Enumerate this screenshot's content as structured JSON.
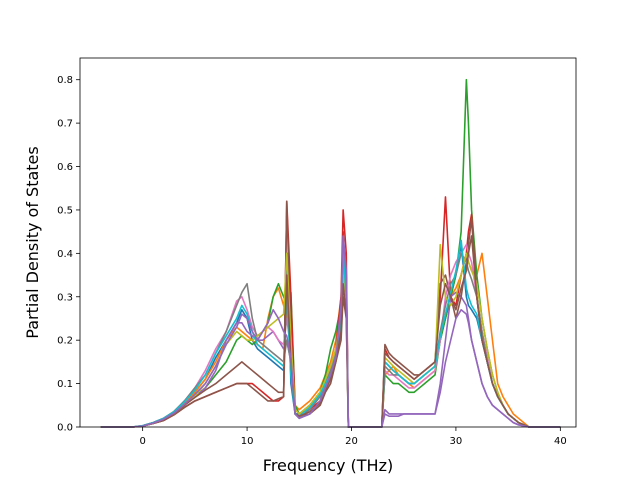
{
  "chart_data": {
    "type": "line",
    "xlabel": "Frequency (THz)",
    "ylabel": "Partial Density of States",
    "xlim": [
      -6,
      41.5
    ],
    "ylim": [
      0,
      0.85
    ],
    "xticks": [
      0,
      10,
      20,
      30,
      40
    ],
    "yticks": [
      0.0,
      0.1,
      0.2,
      0.3,
      0.4,
      0.5,
      0.6,
      0.7,
      0.8
    ],
    "grid": false,
    "x": [
      -4,
      -1,
      0,
      1,
      2,
      3,
      4,
      5,
      6,
      7,
      8,
      9,
      9.5,
      10,
      10.5,
      11,
      11.5,
      12,
      12.5,
      13,
      13.5,
      13.8,
      14.2,
      14.6,
      15,
      16,
      17,
      17.5,
      18,
      18.5,
      19,
      19.2,
      19.5,
      19.7,
      20,
      21,
      22,
      22.9,
      23.2,
      23.6,
      24,
      24.5,
      25,
      25.5,
      26,
      26.5,
      27,
      27.5,
      28,
      28.5,
      29,
      29.5,
      30,
      30.5,
      31,
      31.2,
      31.5,
      32,
      32.5,
      33,
      33.5,
      34,
      34.5,
      35,
      35.5,
      36,
      37,
      40
    ],
    "series": [
      {
        "color": "#1f77b4",
        "values": [
          0,
          0,
          0.003,
          0.01,
          0.02,
          0.035,
          0.06,
          0.08,
          0.11,
          0.16,
          0.2,
          0.24,
          0.27,
          0.25,
          0.2,
          0.18,
          0.17,
          0.16,
          0.15,
          0.14,
          0.13,
          0.4,
          0.1,
          0.03,
          0.03,
          0.05,
          0.08,
          0.1,
          0.12,
          0.16,
          0.25,
          0.45,
          0.3,
          0,
          0,
          0,
          0,
          0,
          0.15,
          0.14,
          0.13,
          0.12,
          0.11,
          0.1,
          0.1,
          0.11,
          0.12,
          0.13,
          0.14,
          0.2,
          0.25,
          0.3,
          0.35,
          0.42,
          0.3,
          0.28,
          0.27,
          0.25,
          0.2,
          0.15,
          0.1,
          0.07,
          0.05,
          0.03,
          0.02,
          0.01,
          0,
          0
        ]
      },
      {
        "color": "#ff7f0e",
        "values": [
          0,
          0,
          0.002,
          0.01,
          0.02,
          0.035,
          0.055,
          0.08,
          0.11,
          0.15,
          0.2,
          0.23,
          0.22,
          0.21,
          0.2,
          0.19,
          0.18,
          0.25,
          0.3,
          0.32,
          0.28,
          0.26,
          0.2,
          0.05,
          0.04,
          0.06,
          0.09,
          0.12,
          0.15,
          0.2,
          0.3,
          0.4,
          0.35,
          0,
          0,
          0,
          0,
          0,
          0.12,
          0.13,
          0.14,
          0.12,
          0.11,
          0.1,
          0.09,
          0.1,
          0.11,
          0.12,
          0.13,
          0.2,
          0.26,
          0.3,
          0.32,
          0.35,
          0.4,
          0.38,
          0.36,
          0.35,
          0.4,
          0.3,
          0.2,
          0.1,
          0.07,
          0.05,
          0.03,
          0.02,
          0,
          0
        ]
      },
      {
        "color": "#2ca02c",
        "values": [
          0,
          0,
          0.002,
          0.008,
          0.015,
          0.03,
          0.05,
          0.07,
          0.09,
          0.12,
          0.15,
          0.2,
          0.21,
          0.2,
          0.19,
          0.2,
          0.22,
          0.24,
          0.3,
          0.33,
          0.3,
          0.28,
          0.31,
          0.05,
          0.03,
          0.05,
          0.08,
          0.12,
          0.18,
          0.22,
          0.28,
          0.35,
          0.3,
          0,
          0,
          0,
          0,
          0,
          0.12,
          0.11,
          0.1,
          0.1,
          0.09,
          0.08,
          0.08,
          0.09,
          0.1,
          0.11,
          0.12,
          0.2,
          0.25,
          0.3,
          0.35,
          0.45,
          0.8,
          0.7,
          0.5,
          0.35,
          0.25,
          0.18,
          0.12,
          0.08,
          0.05,
          0.03,
          0.02,
          0.01,
          0,
          0
        ]
      },
      {
        "color": "#d62728",
        "values": [
          0,
          0,
          0.002,
          0.008,
          0.015,
          0.028,
          0.045,
          0.06,
          0.07,
          0.08,
          0.09,
          0.1,
          0.1,
          0.1,
          0.1,
          0.09,
          0.08,
          0.07,
          0.06,
          0.06,
          0.07,
          0.52,
          0.3,
          0.04,
          0.03,
          0.04,
          0.06,
          0.09,
          0.12,
          0.18,
          0.3,
          0.5,
          0.4,
          0,
          0,
          0,
          0,
          0,
          0.18,
          0.16,
          0.15,
          0.14,
          0.13,
          0.12,
          0.11,
          0.12,
          0.13,
          0.14,
          0.15,
          0.3,
          0.53,
          0.3,
          0.28,
          0.35,
          0.4,
          0.45,
          0.49,
          0.3,
          0.2,
          0.15,
          0.1,
          0.07,
          0.05,
          0.03,
          0.02,
          0.01,
          0,
          0
        ]
      },
      {
        "color": "#9467bd",
        "values": [
          0,
          0,
          0.002,
          0.009,
          0.018,
          0.032,
          0.05,
          0.07,
          0.09,
          0.13,
          0.2,
          0.24,
          0.24,
          0.22,
          0.21,
          0.2,
          0.2,
          0.21,
          0.22,
          0.2,
          0.18,
          0.2,
          0.15,
          0.03,
          0.02,
          0.03,
          0.06,
          0.1,
          0.13,
          0.17,
          0.28,
          0.44,
          0.36,
          0,
          0,
          0,
          0,
          0,
          0.03,
          0.025,
          0.025,
          0.025,
          0.03,
          0.03,
          0.03,
          0.03,
          0.03,
          0.03,
          0.03,
          0.1,
          0.2,
          0.3,
          0.31,
          0.3,
          0.28,
          0.25,
          0.2,
          0.15,
          0.1,
          0.07,
          0.05,
          0.04,
          0.03,
          0.02,
          0.01,
          0.005,
          0,
          0
        ]
      },
      {
        "color": "#8c564b",
        "values": [
          0,
          0,
          0.002,
          0.008,
          0.015,
          0.028,
          0.045,
          0.06,
          0.07,
          0.08,
          0.09,
          0.1,
          0.1,
          0.1,
          0.09,
          0.08,
          0.07,
          0.06,
          0.06,
          0.065,
          0.07,
          0.52,
          0.2,
          0.03,
          0.025,
          0.03,
          0.05,
          0.08,
          0.1,
          0.15,
          0.2,
          0.3,
          0.25,
          0,
          0,
          0,
          0,
          0,
          0.19,
          0.17,
          0.16,
          0.15,
          0.14,
          0.13,
          0.12,
          0.12,
          0.13,
          0.14,
          0.15,
          0.33,
          0.35,
          0.3,
          0.25,
          0.3,
          0.38,
          0.42,
          0.48,
          0.3,
          0.2,
          0.15,
          0.1,
          0.07,
          0.05,
          0.03,
          0.02,
          0.01,
          0,
          0
        ]
      },
      {
        "color": "#e377c2",
        "values": [
          0,
          0,
          0.002,
          0.01,
          0.02,
          0.035,
          0.06,
          0.09,
          0.13,
          0.18,
          0.22,
          0.29,
          0.3,
          0.27,
          0.23,
          0.21,
          0.22,
          0.23,
          0.22,
          0.2,
          0.19,
          0.25,
          0.18,
          0.04,
          0.03,
          0.05,
          0.07,
          0.1,
          0.13,
          0.17,
          0.25,
          0.38,
          0.3,
          0,
          0,
          0,
          0,
          0,
          0.13,
          0.12,
          0.12,
          0.11,
          0.1,
          0.09,
          0.09,
          0.1,
          0.11,
          0.12,
          0.13,
          0.2,
          0.3,
          0.35,
          0.38,
          0.4,
          0.42,
          0.4,
          0.38,
          0.3,
          0.22,
          0.16,
          0.1,
          0.07,
          0.05,
          0.03,
          0.02,
          0.01,
          0,
          0
        ]
      },
      {
        "color": "#7f7f7f",
        "values": [
          0,
          0,
          0.003,
          0.01,
          0.02,
          0.036,
          0.06,
          0.09,
          0.12,
          0.17,
          0.22,
          0.28,
          0.31,
          0.33,
          0.25,
          0.2,
          0.19,
          0.18,
          0.17,
          0.16,
          0.15,
          0.2,
          0.15,
          0.03,
          0.02,
          0.04,
          0.07,
          0.1,
          0.13,
          0.17,
          0.26,
          0.42,
          0.33,
          0,
          0,
          0,
          0,
          0,
          0.14,
          0.13,
          0.12,
          0.12,
          0.11,
          0.1,
          0.1,
          0.11,
          0.12,
          0.13,
          0.14,
          0.22,
          0.28,
          0.33,
          0.35,
          0.4,
          0.38,
          0.36,
          0.34,
          0.3,
          0.22,
          0.15,
          0.1,
          0.07,
          0.05,
          0.03,
          0.02,
          0.01,
          0,
          0
        ]
      },
      {
        "color": "#bcbd22",
        "values": [
          0,
          0,
          0.002,
          0.009,
          0.018,
          0.03,
          0.05,
          0.07,
          0.1,
          0.14,
          0.19,
          0.22,
          0.21,
          0.2,
          0.2,
          0.21,
          0.22,
          0.23,
          0.24,
          0.25,
          0.26,
          0.4,
          0.2,
          0.04,
          0.03,
          0.05,
          0.08,
          0.11,
          0.14,
          0.18,
          0.25,
          0.35,
          0.3,
          0,
          0,
          0,
          0,
          0,
          0.16,
          0.15,
          0.14,
          0.13,
          0.12,
          0.11,
          0.1,
          0.11,
          0.12,
          0.13,
          0.14,
          0.42,
          0.3,
          0.28,
          0.3,
          0.35,
          0.4,
          0.38,
          0.36,
          0.33,
          0.25,
          0.18,
          0.12,
          0.08,
          0.05,
          0.03,
          0.02,
          0.01,
          0,
          0
        ]
      },
      {
        "color": "#17becf",
        "values": [
          0,
          0,
          0.003,
          0.01,
          0.02,
          0.035,
          0.058,
          0.085,
          0.12,
          0.17,
          0.21,
          0.25,
          0.28,
          0.26,
          0.22,
          0.19,
          0.18,
          0.17,
          0.16,
          0.15,
          0.14,
          0.3,
          0.12,
          0.03,
          0.025,
          0.045,
          0.075,
          0.1,
          0.12,
          0.16,
          0.24,
          0.4,
          0.3,
          0,
          0,
          0,
          0,
          0,
          0.15,
          0.14,
          0.13,
          0.12,
          0.11,
          0.1,
          0.1,
          0.11,
          0.12,
          0.13,
          0.14,
          0.21,
          0.26,
          0.31,
          0.36,
          0.43,
          0.32,
          0.3,
          0.28,
          0.26,
          0.2,
          0.15,
          0.1,
          0.07,
          0.05,
          0.03,
          0.02,
          0.01,
          0,
          0
        ]
      },
      {
        "color": "#8c564b",
        "values": [
          0,
          0,
          0.002,
          0.009,
          0.017,
          0.03,
          0.05,
          0.068,
          0.085,
          0.1,
          0.12,
          0.14,
          0.15,
          0.14,
          0.13,
          0.12,
          0.11,
          0.1,
          0.09,
          0.08,
          0.08,
          0.35,
          0.15,
          0.03,
          0.025,
          0.035,
          0.055,
          0.085,
          0.11,
          0.15,
          0.22,
          0.33,
          0.26,
          0,
          0,
          0,
          0,
          0,
          0.17,
          0.16,
          0.15,
          0.14,
          0.13,
          0.12,
          0.11,
          0.12,
          0.13,
          0.14,
          0.15,
          0.28,
          0.33,
          0.3,
          0.27,
          0.32,
          0.36,
          0.4,
          0.44,
          0.3,
          0.2,
          0.15,
          0.1,
          0.07,
          0.05,
          0.03,
          0.02,
          0.01,
          0,
          0
        ]
      },
      {
        "color": "#9467bd",
        "values": [
          0,
          0,
          0.002,
          0.009,
          0.018,
          0.032,
          0.052,
          0.075,
          0.1,
          0.14,
          0.19,
          0.23,
          0.26,
          0.25,
          0.22,
          0.2,
          0.22,
          0.24,
          0.27,
          0.25,
          0.22,
          0.21,
          0.16,
          0.03,
          0.02,
          0.03,
          0.06,
          0.09,
          0.12,
          0.16,
          0.27,
          0.44,
          0.35,
          0,
          0,
          0,
          0,
          0,
          0.04,
          0.03,
          0.03,
          0.03,
          0.03,
          0.03,
          0.03,
          0.03,
          0.03,
          0.03,
          0.03,
          0.08,
          0.15,
          0.2,
          0.25,
          0.27,
          0.26,
          0.24,
          0.2,
          0.15,
          0.1,
          0.07,
          0.05,
          0.04,
          0.03,
          0.02,
          0.01,
          0.005,
          0,
          0
        ]
      }
    ]
  }
}
